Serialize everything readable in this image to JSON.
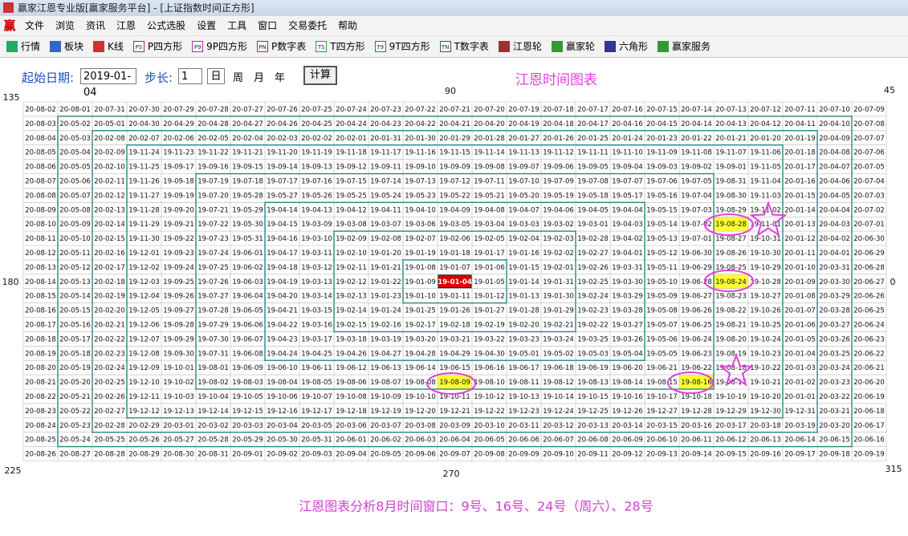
{
  "window": {
    "title": "赢家江恩专业版[赢家服务平台] - [上证指数时间正方形]",
    "app_icon": "赢"
  },
  "menu": [
    "文件",
    "浏览",
    "资讯",
    "江恩",
    "公式选股",
    "设置",
    "工具",
    "窗口",
    "交易委托",
    "帮助"
  ],
  "toolbar": [
    {
      "label": "行情"
    },
    {
      "label": "板块"
    },
    {
      "label": "K线"
    },
    {
      "icon": "PS",
      "label": "P四方形"
    },
    {
      "icon": "P9",
      "label": "9P四方形"
    },
    {
      "icon": "PN",
      "label": "P数字表"
    },
    {
      "icon": "TS",
      "label": "T四方形"
    },
    {
      "icon": "T9",
      "label": "9T四方形"
    },
    {
      "icon": "TN",
      "label": "T数字表"
    },
    {
      "label": "江恩轮"
    },
    {
      "label": "赢家轮"
    },
    {
      "label": "六角形"
    },
    {
      "label": "赢家服务"
    }
  ],
  "controls": {
    "start_label": "起始日期:",
    "start_date": "2019-01-04",
    "step_label": "步长:",
    "step": "1",
    "periods": [
      "日",
      "周",
      "月",
      "年"
    ],
    "compute": "计算"
  },
  "chart": {
    "title": "江恩时间图表",
    "angles": {
      "top_left": "135",
      "top": "90",
      "top_right": "45",
      "left": "180",
      "right": "0",
      "bottom_left": "225",
      "bottom": "270",
      "bottom_right": "315"
    }
  },
  "grid": {
    "rows": [
      [
        "20-08-02",
        "20-08-01",
        "20-07-31",
        "20-07-30",
        "20-07-29",
        "20-07-28",
        "20-07-27",
        "20-07-26",
        "20-07-25",
        "20-07-24",
        "20-07-23",
        "20-07-22",
        "20-07-21",
        "20-07-20",
        "20-07-19",
        "20-07-18",
        "20-07-17",
        "20-07-16",
        "20-07-15",
        "20-07-14",
        "20-07-13",
        "20-07-12",
        "20-07-11",
        "20-07-10",
        "20-07-09"
      ],
      [
        "20-08-03",
        "20-05-02",
        "20-05-01",
        "20-04-30",
        "20-04-29",
        "20-04-28",
        "20-04-27",
        "20-04-26",
        "20-04-25",
        "20-04-24",
        "20-04-23",
        "20-04-22",
        "20-04-21",
        "20-04-20",
        "20-04-19",
        "20-04-18",
        "20-04-17",
        "20-04-16",
        "20-04-15",
        "20-04-14",
        "20-04-13",
        "20-04-12",
        "20-04-11",
        "20-04-10",
        "20-07-08"
      ],
      [
        "20-08-04",
        "20-05-03",
        "20-02-08",
        "20-02-07",
        "20-02-06",
        "20-02-05",
        "20-02-04",
        "20-02-03",
        "20-02-02",
        "20-02-01",
        "20-01-31",
        "20-01-30",
        "20-01-29",
        "20-01-28",
        "20-01-27",
        "20-01-26",
        "20-01-25",
        "20-01-24",
        "20-01-23",
        "20-01-22",
        "20-01-21",
        "20-01-20",
        "20-01-19",
        "20-04-09",
        "20-07-07"
      ],
      [
        "20-08-05",
        "20-05-04",
        "20-02-09",
        "19-11-24",
        "19-11-23",
        "19-11-22",
        "19-11-21",
        "19-11-20",
        "19-11-19",
        "19-11-18",
        "19-11-17",
        "19-11-16",
        "19-11-15",
        "19-11-14",
        "19-11-13",
        "19-11-12",
        "19-11-11",
        "19-11-10",
        "19-11-09",
        "19-11-08",
        "19-11-07",
        "19-11-06",
        "20-01-18",
        "20-04-08",
        "20-07-06"
      ],
      [
        "20-08-06",
        "20-05-05",
        "20-02-10",
        "19-11-25",
        "19-09-17",
        "19-09-16",
        "19-09-15",
        "19-09-14",
        "19-09-13",
        "19-09-12",
        "19-09-11",
        "19-09-10",
        "19-09-09",
        "19-09-08",
        "19-09-07",
        "19-09-06",
        "19-09-05",
        "19-09-04",
        "19-09-03",
        "19-09-02",
        "19-09-01",
        "19-11-05",
        "20-01-17",
        "20-04-07",
        "20-07-05"
      ],
      [
        "20-08-07",
        "20-05-06",
        "20-02-11",
        "19-11-26",
        "19-09-18",
        "19-07-19",
        "19-07-18",
        "19-07-17",
        "19-07-16",
        "19-07-15",
        "19-07-14",
        "19-07-13",
        "19-07-12",
        "19-07-11",
        "19-07-10",
        "19-07-09",
        "19-07-08",
        "19-07-07",
        "19-07-06",
        "19-07-05",
        "19-08-31",
        "19-11-04",
        "20-01-16",
        "20-04-06",
        "20-07-04"
      ],
      [
        "20-08-08",
        "20-05-07",
        "20-02-12",
        "19-11-27",
        "19-09-19",
        "19-07-20",
        "19-05-28",
        "19-05-27",
        "19-05-26",
        "19-05-25",
        "19-05-24",
        "19-05-23",
        "19-05-22",
        "19-05-21",
        "19-05-20",
        "19-05-19",
        "19-05-18",
        "19-05-17",
        "19-05-16",
        "19-07-04",
        "19-08-30",
        "19-11-03",
        "20-01-15",
        "20-04-05",
        "20-07-03"
      ],
      [
        "20-08-09",
        "20-05-08",
        "20-02-13",
        "19-11-28",
        "19-09-20",
        "19-07-21",
        "19-05-29",
        "19-04-14",
        "19-04-13",
        "19-04-12",
        "19-04-11",
        "19-04-10",
        "19-04-09",
        "19-04-08",
        "19-04-07",
        "19-04-06",
        "19-04-05",
        "19-04-04",
        "19-05-15",
        "19-07-03",
        "19-08-29",
        "19-11-02",
        "20-01-14",
        "20-04-04",
        "20-07-02"
      ],
      [
        "20-08-10",
        "20-05-09",
        "20-02-14",
        "19-11-29",
        "19-09-21",
        "19-07-22",
        "19-05-30",
        "19-04-15",
        "19-03-09",
        "19-03-08",
        "19-03-07",
        "19-03-06",
        "19-03-05",
        "19-03-04",
        "19-03-03",
        "19-03-02",
        "19-03-01",
        "19-04-03",
        "19-05-14",
        "19-07-02",
        "19-08-28",
        "19-11-01",
        "20-01-13",
        "20-04-03",
        "20-07-01"
      ],
      [
        "20-08-11",
        "20-05-10",
        "20-02-15",
        "19-11-30",
        "19-09-22",
        "19-07-23",
        "19-05-31",
        "19-04-16",
        "19-03-10",
        "19-02-09",
        "19-02-08",
        "19-02-07",
        "19-02-06",
        "19-02-05",
        "19-02-04",
        "19-02-03",
        "19-02-28",
        "19-04-02",
        "19-05-13",
        "19-07-01",
        "19-08-27",
        "19-10-31",
        "20-01-12",
        "20-04-02",
        "20-06-30"
      ],
      [
        "20-08-12",
        "20-05-11",
        "20-02-16",
        "19-12-01",
        "19-09-23",
        "19-07-24",
        "19-06-01",
        "19-04-17",
        "19-03-11",
        "19-02-10",
        "19-01-20",
        "19-01-19",
        "19-01-18",
        "19-01-17",
        "19-01-16",
        "19-02-02",
        "19-02-27",
        "19-04-01",
        "19-05-12",
        "19-06-30",
        "19-08-26",
        "19-10-30",
        "20-01-11",
        "20-04-01",
        "20-06-29"
      ],
      [
        "20-08-13",
        "20-05-12",
        "20-02-17",
        "19-12-02",
        "19-09-24",
        "19-07-25",
        "19-06-02",
        "19-04-18",
        "19-03-12",
        "19-02-11",
        "19-01-21",
        "19-01-08",
        "19-01-07",
        "19-01-06",
        "19-01-15",
        "19-02-01",
        "19-02-26",
        "19-03-31",
        "19-05-11",
        "19-06-29",
        "19-08-25",
        "19-10-29",
        "20-01-10",
        "20-03-31",
        "20-06-28"
      ],
      [
        "20-08-14",
        "20-05-13",
        "20-02-18",
        "19-12-03",
        "19-09-25",
        "19-07-26",
        "19-06-03",
        "19-04-19",
        "19-03-13",
        "19-02-12",
        "19-01-22",
        "19-01-09",
        "19-01-04",
        "19-01-05",
        "19-01-14",
        "19-01-31",
        "19-02-25",
        "19-03-30",
        "19-05-10",
        "19-06-28",
        "19-08-24",
        "19-10-28",
        "20-01-09",
        "20-03-30",
        "20-06-27"
      ],
      [
        "20-08-15",
        "20-05-14",
        "20-02-19",
        "19-12-04",
        "19-09-26",
        "19-07-27",
        "19-06-04",
        "19-04-20",
        "19-03-14",
        "19-02-13",
        "19-01-23",
        "19-01-10",
        "19-01-11",
        "19-01-12",
        "19-01-13",
        "19-01-30",
        "19-02-24",
        "19-03-29",
        "19-05-09",
        "19-06-27",
        "19-08-23",
        "19-10-27",
        "20-01-08",
        "20-03-29",
        "20-06-26"
      ],
      [
        "20-08-16",
        "20-05-15",
        "20-02-20",
        "19-12-05",
        "19-09-27",
        "19-07-28",
        "19-06-05",
        "19-04-21",
        "19-03-15",
        "19-02-14",
        "19-01-24",
        "19-01-25",
        "19-01-26",
        "19-01-27",
        "19-01-28",
        "19-01-29",
        "19-02-23",
        "19-03-28",
        "19-05-08",
        "19-06-26",
        "19-08-22",
        "19-10-26",
        "20-01-07",
        "20-03-28",
        "20-06-25"
      ],
      [
        "20-08-17",
        "20-05-16",
        "20-02-21",
        "19-12-06",
        "19-09-28",
        "19-07-29",
        "19-06-06",
        "19-04-22",
        "19-03-16",
        "19-02-15",
        "19-02-16",
        "19-02-17",
        "19-02-18",
        "19-02-19",
        "19-02-20",
        "19-02-21",
        "19-02-22",
        "19-03-27",
        "19-05-07",
        "19-06-25",
        "19-08-21",
        "19-10-25",
        "20-01-06",
        "20-03-27",
        "20-06-24"
      ],
      [
        "20-08-18",
        "20-05-17",
        "20-02-22",
        "19-12-07",
        "19-09-29",
        "19-07-30",
        "19-06-07",
        "19-04-23",
        "19-03-17",
        "19-03-18",
        "19-03-19",
        "19-03-20",
        "19-03-21",
        "19-03-22",
        "19-03-23",
        "19-03-24",
        "19-03-25",
        "19-03-26",
        "19-05-06",
        "19-06-24",
        "19-08-20",
        "19-10-24",
        "20-01-05",
        "20-03-26",
        "20-06-23"
      ],
      [
        "20-08-19",
        "20-05-18",
        "20-02-23",
        "19-12-08",
        "19-09-30",
        "19-07-31",
        "19-06-08",
        "19-04-24",
        "19-04-25",
        "19-04-26",
        "19-04-27",
        "19-04-28",
        "19-04-29",
        "19-04-30",
        "19-05-01",
        "19-05-02",
        "19-05-03",
        "19-05-04",
        "19-05-05",
        "19-06-23",
        "19-08-19",
        "19-10-23",
        "20-01-04",
        "20-03-25",
        "20-06-22"
      ],
      [
        "20-08-20",
        "20-05-19",
        "20-02-24",
        "19-12-09",
        "19-10-01",
        "19-08-01",
        "19-06-09",
        "19-06-10",
        "19-06-11",
        "19-06-12",
        "19-06-13",
        "19-06-14",
        "19-06-15",
        "19-06-16",
        "19-06-17",
        "19-06-18",
        "19-06-19",
        "19-06-20",
        "19-06-21",
        "19-06-22",
        "19-08-18",
        "19-10-22",
        "20-01-03",
        "20-03-24",
        "20-06-21"
      ],
      [
        "20-08-21",
        "20-05-20",
        "20-02-25",
        "19-12-10",
        "19-10-02",
        "19-08-02",
        "19-08-03",
        "19-08-04",
        "19-08-05",
        "19-08-06",
        "19-08-07",
        "19-08-08",
        "19-08-09",
        "19-08-10",
        "19-08-11",
        "19-08-12",
        "19-08-13",
        "19-08-14",
        "19-08-15",
        "19-08-16",
        "19-08-17",
        "19-10-21",
        "20-01-02",
        "20-03-23",
        "20-06-20"
      ],
      [
        "20-08-22",
        "20-05-21",
        "20-02-26",
        "19-12-11",
        "19-10-03",
        "19-10-04",
        "19-10-05",
        "19-10-06",
        "19-10-07",
        "19-10-08",
        "19-10-09",
        "19-10-10",
        "19-10-11",
        "19-10-12",
        "19-10-13",
        "19-10-14",
        "19-10-15",
        "19-10-16",
        "19-10-17",
        "19-10-18",
        "19-10-19",
        "19-10-20",
        "20-01-01",
        "20-03-22",
        "20-06-19"
      ],
      [
        "20-08-23",
        "20-05-22",
        "20-02-27",
        "19-12-12",
        "19-12-13",
        "19-12-14",
        "19-12-15",
        "19-12-16",
        "19-12-17",
        "19-12-18",
        "19-12-19",
        "19-12-20",
        "19-12-21",
        "19-12-22",
        "19-12-23",
        "19-12-24",
        "19-12-25",
        "19-12-26",
        "19-12-27",
        "19-12-28",
        "19-12-29",
        "19-12-30",
        "19-12-31",
        "20-03-21",
        "20-06-18"
      ],
      [
        "20-08-24",
        "20-05-23",
        "20-02-28",
        "20-02-29",
        "20-03-01",
        "20-03-02",
        "20-03-03",
        "20-03-04",
        "20-03-05",
        "20-03-06",
        "20-03-07",
        "20-03-08",
        "20-03-09",
        "20-03-10",
        "20-03-11",
        "20-03-12",
        "20-03-13",
        "20-03-14",
        "20-03-15",
        "20-03-16",
        "20-03-17",
        "20-03-18",
        "20-03-19",
        "20-03-20",
        "20-06-17"
      ],
      [
        "20-08-25",
        "20-05-24",
        "20-05-25",
        "20-05-26",
        "20-05-27",
        "20-05-28",
        "20-05-29",
        "20-05-30",
        "20-05-31",
        "20-06-01",
        "20-06-02",
        "20-06-03",
        "20-06-04",
        "20-06-05",
        "20-06-06",
        "20-06-07",
        "20-06-08",
        "20-06-09",
        "20-06-10",
        "20-06-11",
        "20-06-12",
        "20-06-13",
        "20-06-14",
        "20-06-15",
        "20-06-16"
      ],
      [
        "20-08-26",
        "20-08-27",
        "20-08-28",
        "20-08-29",
        "20-08-30",
        "20-08-31",
        "20-09-01",
        "20-09-02",
        "20-09-03",
        "20-09-04",
        "20-09-05",
        "20-09-06",
        "20-09-07",
        "20-09-08",
        "20-09-09",
        "20-09-10",
        "20-09-11",
        "20-09-12",
        "20-09-13",
        "20-09-14",
        "20-09-15",
        "20-09-16",
        "20-09-17",
        "20-09-18",
        "20-09-19"
      ]
    ]
  },
  "note": "江恩图表分析8月时间窗口：9号、16号、24号（周六）、28号"
}
